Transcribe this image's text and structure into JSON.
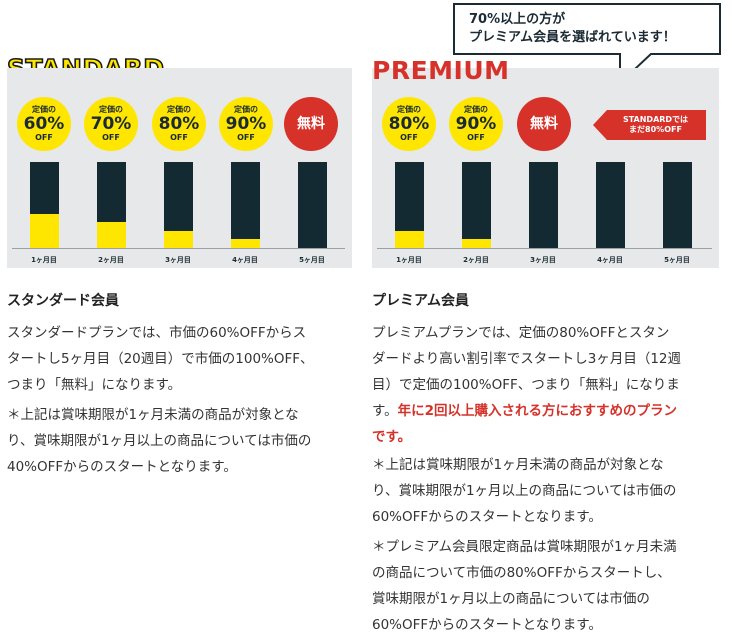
{
  "standard": {
    "title": "STANDARD",
    "badges": [
      {
        "top": "定価の",
        "main": "60%",
        "bottom": "OFF"
      },
      {
        "top": "定価の",
        "main": "70%",
        "bottom": "OFF"
      },
      {
        "top": "定価の",
        "main": "80%",
        "bottom": "OFF"
      },
      {
        "top": "定価の",
        "main": "90%",
        "bottom": "OFF"
      }
    ],
    "free_label": "無料",
    "months": [
      "1ヶ月目",
      "2ヶ月目",
      "3ヶ月目",
      "4ヶ月目",
      "5ヶ月目"
    ],
    "member_title": "スタンダード会員",
    "desc_lines": [
      "スタンダードプランでは、市価の60%OFFからス",
      "タートし5ヶ月目（20週目）で市価の100%OFF、",
      "つまり「無料」になります。"
    ],
    "note_lines": [
      "＊上記は賞味期限が1ヶ月未満の商品が対象とな",
      "り、賞味期限が1ヶ月以上の商品については市価の",
      "40%OFFからのスタートとなります。"
    ]
  },
  "premium": {
    "title": "PREMIUM",
    "badges": [
      {
        "top": "定価の",
        "main": "80%",
        "bottom": "OFF"
      },
      {
        "top": "定価の",
        "main": "90%",
        "bottom": "OFF"
      }
    ],
    "free_label": "無料",
    "tag_lines": [
      "STANDARDでは",
      "まだ80%OFF"
    ],
    "months": [
      "1ヶ月目",
      "2ヶ月目",
      "3ヶ月目",
      "4ヶ月目",
      "5ヶ月目"
    ],
    "bubble_lines": [
      "70%以上の方が",
      "プレミアム会員を選ばれています！"
    ],
    "member_title": "プレミアム会員",
    "desc_lines": [
      "プレミアムプランでは、定価の80%OFFとスタン",
      "ダードより高い割引率でスタートし3ヶ月目（12週",
      "目）で定価の100%OFF、つまり「無料」になりま"
    ],
    "desc_line4_plain": "す。",
    "desc_highlight_a": "年に2回以上購入される方におすすめのプラン",
    "desc_highlight_b": "です。",
    "note1_lines": [
      "＊上記は賞味期限が1ヶ月未満の商品が対象とな",
      "り、賞味期限が1ヶ月以上の商品については市価の",
      "60%OFFからのスタートとなります。"
    ],
    "note2_lines": [
      "＊プレミアム会員限定商品は賞味期限が1ヶ月未満",
      "の商品について市価の80%OFFからスタートし、",
      "賞味期限が1ヶ月以上の商品については市価の",
      "60%OFFからのスタートとなります。"
    ]
  },
  "colors": {
    "yellow": "#ffe600",
    "navy": "#142a33",
    "red": "#d6322a",
    "panel": "#e6e8e9"
  },
  "fill_fraction": {
    "standard": [
      0.4,
      0.3,
      0.2,
      0.1,
      0
    ],
    "premium": [
      0.2,
      0.1,
      0,
      0,
      0
    ]
  }
}
